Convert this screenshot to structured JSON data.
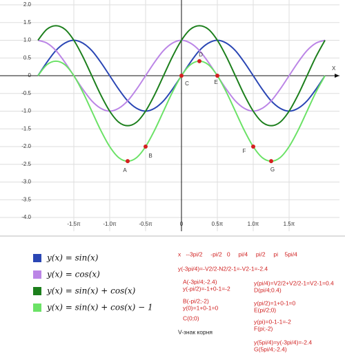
{
  "chart_data": {
    "type": "line",
    "x_label": "X",
    "x": [
      -2,
      -1.875,
      -1.75,
      -1.625,
      -1.5,
      -1.375,
      -1.25,
      -1.125,
      -1,
      -0.875,
      -0.75,
      -0.625,
      -0.5,
      -0.375,
      -0.25,
      -0.125,
      0,
      0.125,
      0.25,
      0.375,
      0.5,
      0.625,
      0.75,
      0.875,
      1,
      1.125,
      1.25,
      1.375,
      1.5,
      1.625,
      1.75,
      1.875,
      2
    ],
    "series": [
      {
        "name": "y(x) = sin(x)",
        "color": "#2a46b4",
        "values": [
          0,
          0.38,
          0.71,
          0.92,
          1,
          0.92,
          0.71,
          0.38,
          0,
          -0.38,
          -0.71,
          -0.92,
          -1,
          -0.92,
          -0.71,
          -0.38,
          0,
          0.38,
          0.71,
          0.92,
          1,
          0.92,
          0.71,
          0.38,
          0,
          -0.38,
          -0.71,
          -0.92,
          -1,
          -0.92,
          -0.71,
          -0.38,
          0
        ]
      },
      {
        "name": "y(x) = cos(x)",
        "color": "#bb85e6",
        "values": [
          1,
          0.92,
          0.71,
          0.38,
          0,
          -0.38,
          -0.71,
          -0.92,
          -1,
          -0.92,
          -0.71,
          -0.38,
          0,
          0.38,
          0.71,
          0.92,
          1,
          0.92,
          0.71,
          0.38,
          0,
          -0.38,
          -0.71,
          -0.92,
          -1,
          -0.92,
          -0.71,
          -0.38,
          0,
          0.38,
          0.71,
          0.92,
          1
        ]
      },
      {
        "name": "y(x) = sin(x) + cos(x)",
        "color": "#1c7f1c",
        "values": [
          1,
          1.31,
          1.41,
          1.31,
          1,
          0.54,
          0,
          -0.54,
          -1,
          -1.31,
          -1.41,
          -1.31,
          -1,
          -0.54,
          0,
          0.54,
          1,
          1.31,
          1.41,
          1.31,
          1,
          0.54,
          0,
          -0.54,
          -1,
          -1.31,
          -1.41,
          -1.31,
          -1,
          -0.54,
          0,
          0.54,
          1
        ]
      },
      {
        "name": "y(x) = sin(x) + cos(x) − 1",
        "color": "#6be266",
        "values": [
          0,
          0.31,
          0.41,
          0.31,
          0,
          -0.46,
          -1,
          -1.54,
          -2,
          -2.31,
          -2.41,
          -2.31,
          -2,
          -1.54,
          -1,
          -0.46,
          0,
          0.31,
          0.41,
          0.31,
          0,
          -0.46,
          -1,
          -1.54,
          -2,
          -2.31,
          -2.41,
          -2.31,
          -2,
          -1.54,
          -1,
          -0.46,
          0
        ]
      }
    ],
    "points": {
      "color": "#d42020",
      "labels": [
        "A",
        "B",
        "C",
        "D",
        "E",
        "F",
        "G"
      ],
      "x": [
        -0.75,
        -0.5,
        0,
        0.25,
        0.5,
        1,
        1.25
      ],
      "values": [
        -2.41,
        -2,
        0,
        0.41,
        0,
        -2,
        -2.41
      ]
    },
    "xlim": [
      -2,
      2
    ],
    "xticks": [
      {
        "value": -1.5,
        "label": "-1.5π"
      },
      {
        "value": -1,
        "label": "-1.0π"
      },
      {
        "value": -0.5,
        "label": "-0.5π"
      },
      0,
      {
        "value": 0.5,
        "label": "0.5π"
      },
      {
        "value": 1,
        "label": "1.0π"
      },
      {
        "value": 1.5,
        "label": "1.5π"
      }
    ],
    "ylim": [
      -4,
      2
    ],
    "yticks": [
      {
        "value": 2,
        "label": "2.0"
      },
      1.5,
      {
        "value": 1,
        "label": "1.0"
      },
      0.5,
      0,
      -0.5,
      {
        "value": -1,
        "label": "-1.0"
      },
      -1.5,
      {
        "value": -2,
        "label": "-2.0"
      },
      -2.5,
      {
        "value": -3,
        "label": "-3.0"
      },
      -3.5,
      {
        "value": -4,
        "label": "-4.0"
      }
    ],
    "grid": true
  },
  "notes": [
    "x   --3pi/2     -pi/2   0     pi/4     pi/2     pi    5pi/4",
    "y(-3pi/4)=-V2/2-N2/2-1=-V2-1=-2.4",
    "A(-3pi/4;-2.4)",
    "y(-pi/2)=-1+0-1=-2",
    "y(pi/4)=V2/2+V2/2-1=V2-1=0.4",
    "D(pi/4;0.4)",
    "B(-pi/2;-2)",
    "y(0)=1+0-1=0",
    "y(pi/2)=1+0-1=0",
    "E(pi/2;0)",
    "C(0;0)",
    "V-знак корня",
    "y(pi)=0-1-1=-2",
    "F(pi;-2)",
    "y(5pi/4)=y(-3pi/4)=-2.4",
    "G(5pi/4;-2.4)"
  ]
}
